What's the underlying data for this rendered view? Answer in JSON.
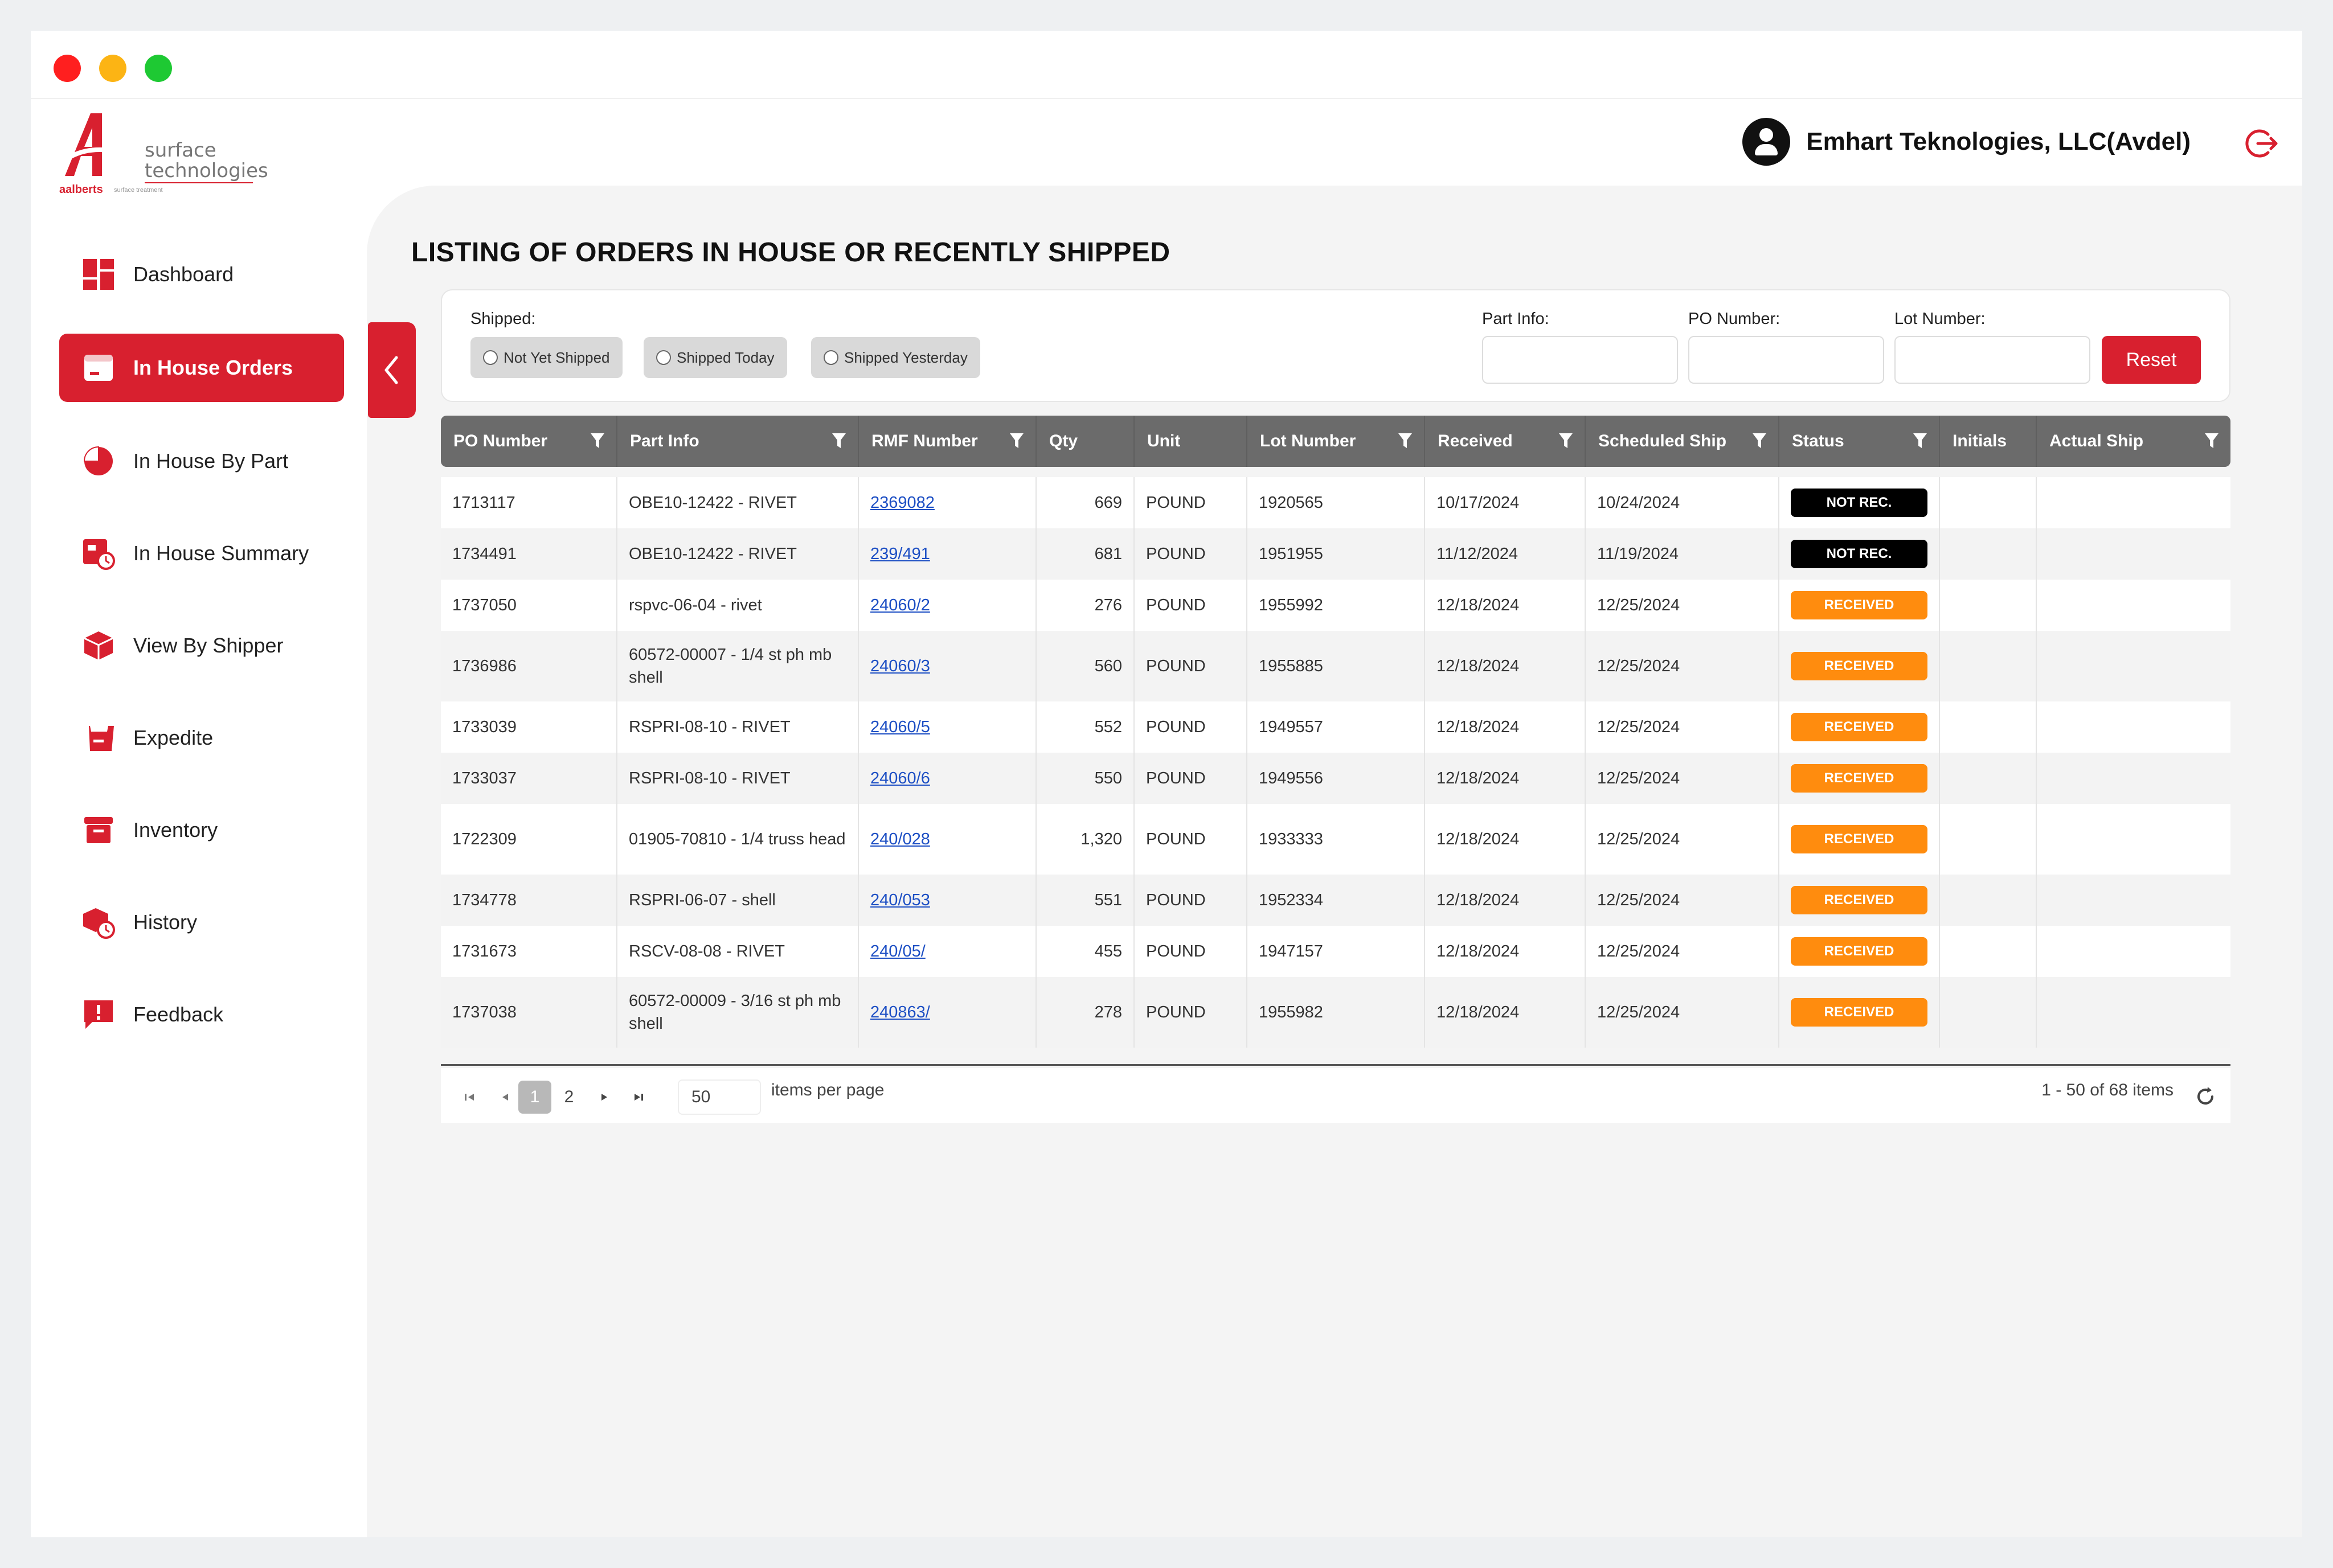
{
  "app": {
    "logo": {
      "brand": "aalberts",
      "line1": "surface",
      "line2": "technologies",
      "sub": "surface treatment"
    },
    "user_name": "Emhart Teknologies, LLC(Avdel)"
  },
  "sidebar": {
    "items": [
      {
        "label": "Dashboard",
        "icon": "dashboard-icon"
      },
      {
        "label": "In House Orders",
        "icon": "orders-icon"
      },
      {
        "label": "In House By Part",
        "icon": "pie-chart-icon"
      },
      {
        "label": "In House Summary",
        "icon": "summary-clock-icon"
      },
      {
        "label": "View By Shipper",
        "icon": "box-icon"
      },
      {
        "label": "Expedite",
        "icon": "cart-icon"
      },
      {
        "label": "Inventory",
        "icon": "archive-icon"
      },
      {
        "label": "History",
        "icon": "history-box-icon"
      },
      {
        "label": "Feedback",
        "icon": "feedback-icon"
      }
    ],
    "active_index": 1
  },
  "page": {
    "title": "LISTING OF ORDERS IN HOUSE OR RECENTLY SHIPPED"
  },
  "filters": {
    "shipped_label": "Shipped:",
    "shipped_options": [
      "Not Yet Shipped",
      "Shipped Today",
      "Shipped Yesterday"
    ],
    "part_info_label": "Part Info:",
    "part_info_value": "",
    "po_number_label": "PO Number:",
    "po_number_value": "",
    "lot_number_label": "Lot Number:",
    "lot_number_value": "",
    "reset_label": "Reset"
  },
  "table": {
    "columns": [
      "PO Number",
      "Part Info",
      "RMF Number",
      "Qty",
      "Unit",
      "Lot Number",
      "Received",
      "Scheduled Ship",
      "Status",
      "Initials",
      "Actual Ship"
    ],
    "rows": [
      {
        "po": "1713117",
        "part": "OBE10-12422 - RIVET",
        "rmf": "2369082",
        "qty": "669",
        "unit": "POUND",
        "lot": "1920565",
        "received": "10/17/2024",
        "sched": "10/24/2024",
        "status": "NOT REC.",
        "initials": "",
        "actual": ""
      },
      {
        "po": "1734491",
        "part": "OBE10-12422 - RIVET",
        "rmf": "239/491",
        "qty": "681",
        "unit": "POUND",
        "lot": "1951955",
        "received": "11/12/2024",
        "sched": "11/19/2024",
        "status": "NOT REC.",
        "initials": "",
        "actual": ""
      },
      {
        "po": "1737050",
        "part": "rspvc-06-04 - rivet",
        "rmf": "24060/2",
        "qty": "276",
        "unit": "POUND",
        "lot": "1955992",
        "received": "12/18/2024",
        "sched": "12/25/2024",
        "status": "RECEIVED",
        "initials": "",
        "actual": ""
      },
      {
        "po": "1736986",
        "part": "60572-00007 - 1/4 st ph mb shell",
        "rmf": "24060/3",
        "qty": "560",
        "unit": "POUND",
        "lot": "1955885",
        "received": "12/18/2024",
        "sched": "12/25/2024",
        "status": "RECEIVED",
        "initials": "",
        "actual": ""
      },
      {
        "po": "1733039",
        "part": "RSPRI-08-10 - RIVET",
        "rmf": "24060/5",
        "qty": "552",
        "unit": "POUND",
        "lot": "1949557",
        "received": "12/18/2024",
        "sched": "12/25/2024",
        "status": "RECEIVED",
        "initials": "",
        "actual": ""
      },
      {
        "po": "1733037",
        "part": "RSPRI-08-10 - RIVET",
        "rmf": "24060/6",
        "qty": "550",
        "unit": "POUND",
        "lot": "1949556",
        "received": "12/18/2024",
        "sched": "12/25/2024",
        "status": "RECEIVED",
        "initials": "",
        "actual": ""
      },
      {
        "po": "1722309",
        "part": "01905-70810 - 1/4 truss head",
        "rmf": "240/028",
        "qty": "1,320",
        "unit": "POUND",
        "lot": "1933333",
        "received": "12/18/2024",
        "sched": "12/25/2024",
        "status": "RECEIVED",
        "initials": "",
        "actual": ""
      },
      {
        "po": "1734778",
        "part": "RSPRI-06-07 - shell",
        "rmf": "240/053",
        "qty": "551",
        "unit": "POUND",
        "lot": "1952334",
        "received": "12/18/2024",
        "sched": "12/25/2024",
        "status": "RECEIVED",
        "initials": "",
        "actual": ""
      },
      {
        "po": "1731673",
        "part": "RSCV-08-08 - RIVET",
        "rmf": "240/05/",
        "qty": "455",
        "unit": "POUND",
        "lot": "1947157",
        "received": "12/18/2024",
        "sched": "12/25/2024",
        "status": "RECEIVED",
        "initials": "",
        "actual": ""
      },
      {
        "po": "1737038",
        "part": "60572-00009 - 3/16 st ph mb shell",
        "rmf": "240863/",
        "qty": "278",
        "unit": "POUND",
        "lot": "1955982",
        "received": "12/18/2024",
        "sched": "12/25/2024",
        "status": "RECEIVED",
        "initials": "",
        "actual": ""
      }
    ]
  },
  "pager": {
    "pages": [
      "1",
      "2"
    ],
    "current_page": "1",
    "page_size": "50",
    "items_per_page_label": "items per page",
    "summary": "1 - 50 of 68 items"
  },
  "colors": {
    "brand_red": "#d8202f",
    "header_gray": "#6b6b6b",
    "status_not_received": "#000000",
    "status_received": "#ff8c0e",
    "link_blue": "#1d4fc4"
  }
}
